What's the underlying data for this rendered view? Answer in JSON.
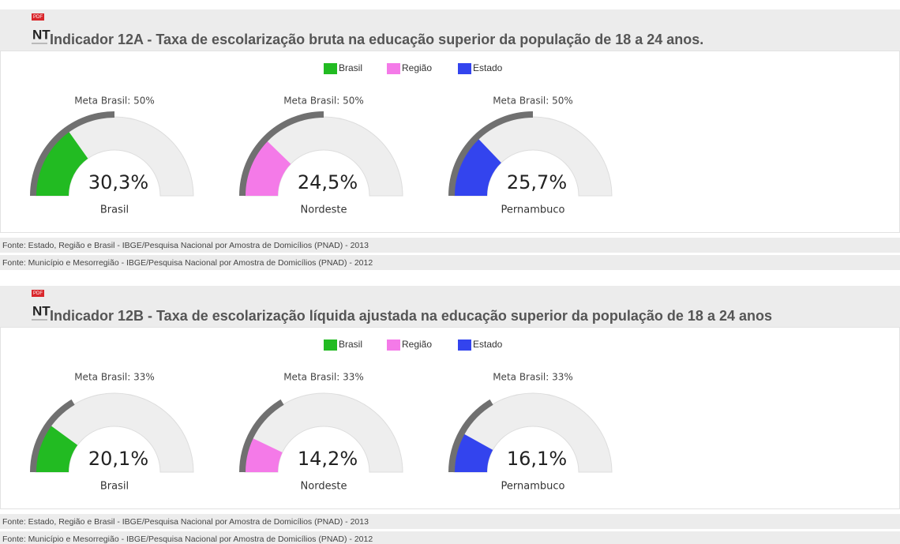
{
  "panels": [
    {
      "badge": "PDF",
      "icon_label": "NT",
      "title": "Indicador 12A - Taxa de escolarização bruta na educação superior da população de 18 a 24 anos.",
      "legend": [
        {
          "name": "Brasil",
          "color": "#22bb22"
        },
        {
          "name": "Região",
          "color": "#f47ae8"
        },
        {
          "name": "Estado",
          "color": "#3344ee"
        }
      ],
      "gauges": [
        {
          "meta": {
            "value": 50,
            "label": "Meta Brasil: 50%"
          },
          "value": 30.3,
          "value_label": "30,3%",
          "name": "Brasil",
          "color": "#22bb22"
        },
        {
          "meta": {
            "value": 50,
            "label": "Meta Brasil: 50%"
          },
          "value": 24.5,
          "value_label": "24,5%",
          "name": "Nordeste",
          "color": "#f47ae8"
        },
        {
          "meta": {
            "value": 50,
            "label": "Meta Brasil: 50%"
          },
          "value": 25.7,
          "value_label": "25,7%",
          "name": "Pernambuco",
          "color": "#3344ee"
        }
      ],
      "sources": [
        "Fonte: Estado, Região e Brasil - IBGE/Pesquisa Nacional por Amostra de Domicílios (PNAD) - 2013",
        "Fonte: Município e Mesorregião - IBGE/Pesquisa Nacional por Amostra de Domicílios (PNAD) - 2012"
      ]
    },
    {
      "badge": "PDF",
      "icon_label": "NT",
      "title": "Indicador 12B - Taxa de escolarização líquida ajustada na educação superior da população de 18 a 24 anos",
      "legend": [
        {
          "name": "Brasil",
          "color": "#22bb22"
        },
        {
          "name": "Região",
          "color": "#f47ae8"
        },
        {
          "name": "Estado",
          "color": "#3344ee"
        }
      ],
      "gauges": [
        {
          "meta": {
            "value": 33,
            "label": "Meta Brasil: 33%"
          },
          "value": 20.1,
          "value_label": "20,1%",
          "name": "Brasil",
          "color": "#22bb22"
        },
        {
          "meta": {
            "value": 33,
            "label": "Meta Brasil: 33%"
          },
          "value": 14.2,
          "value_label": "14,2%",
          "name": "Nordeste",
          "color": "#f47ae8"
        },
        {
          "meta": {
            "value": 33,
            "label": "Meta Brasil: 33%"
          },
          "value": 16.1,
          "value_label": "16,1%",
          "name": "Pernambuco",
          "color": "#3344ee"
        }
      ],
      "sources": [
        "Fonte: Estado, Região e Brasil - IBGE/Pesquisa Nacional por Amostra de Domicílios (PNAD) - 2013",
        "Fonte: Município e Mesorregião - IBGE/Pesquisa Nacional por Amostra de Domicílios (PNAD) - 2012"
      ]
    }
  ]
}
